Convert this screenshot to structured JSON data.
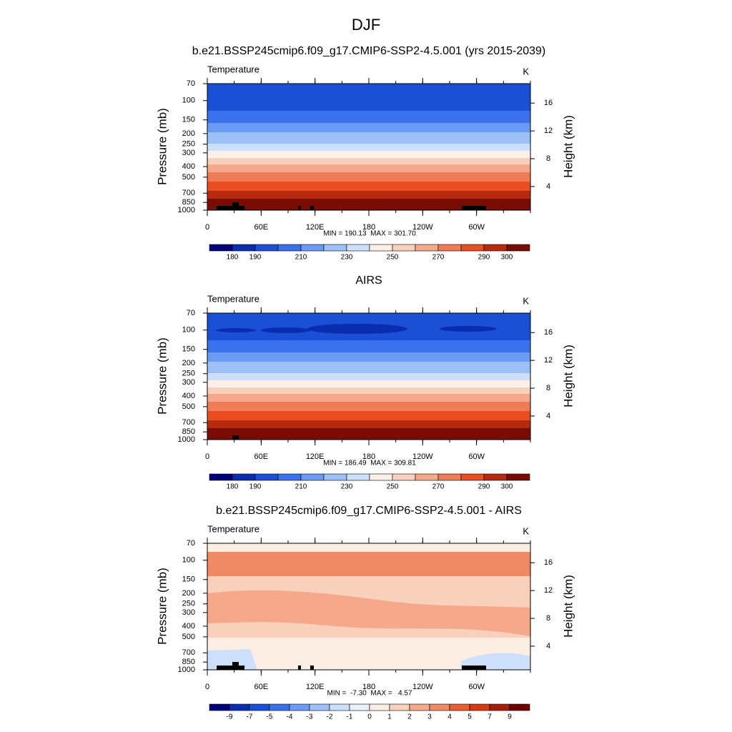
{
  "figure_title": "DJF",
  "chart_data": [
    {
      "type": "contour",
      "title": "b.e21.BSSP245cmip6.f09_g17.CMIP6-SSP2-4.5.001 (yrs 2015-2039)",
      "label_left": "Temperature",
      "units": "K",
      "ylabel": "Pressure (mb)",
      "y2label": "Height (km)",
      "stats": "MIN = 190.13  MAX = 301.70",
      "xlim": [
        0,
        360
      ],
      "xticks": [
        0,
        {
          "value": 60,
          "label": "60E"
        },
        {
          "value": 120,
          "label": "120E"
        },
        180,
        {
          "value": 240,
          "label": "120W"
        },
        {
          "value": 300,
          "label": "60W"
        }
      ],
      "ylim": [
        1000,
        70
      ],
      "ylog": true,
      "yticks": [
        70,
        100,
        150,
        200,
        250,
        300,
        400,
        500,
        700,
        850,
        1000
      ],
      "y2lim": [
        0.6,
        18.8
      ],
      "y2ticks": [
        4,
        8,
        12,
        16
      ],
      "colorbar": {
        "clim": [
          170,
          310
        ],
        "ticks": [
          180,
          190,
          210,
          230,
          250,
          270,
          290,
          300
        ],
        "colors": [
          "#00007a",
          "#0a2db0",
          "#1a4fd6",
          "#3a72ee",
          "#6a9af3",
          "#9cc0f7",
          "#cde0fb",
          "#fdf0e8",
          "#f9d0bb",
          "#f5a98a",
          "#f07c57",
          "#e84e22",
          "#b82a0e",
          "#7a0b03"
        ]
      }
    },
    {
      "type": "contour",
      "title": "AIRS",
      "label_left": "Temperature",
      "units": "K",
      "ylabel": "Pressure (mb)",
      "y2label": "Height (km)",
      "stats": "MIN = 186.49  MAX = 309.81",
      "xlim": [
        0,
        360
      ],
      "xticks": [
        0,
        {
          "value": 60,
          "label": "60E"
        },
        {
          "value": 120,
          "label": "120E"
        },
        180,
        {
          "value": 240,
          "label": "120W"
        },
        {
          "value": 300,
          "label": "60W"
        }
      ],
      "ylim": [
        1000,
        70
      ],
      "ylog": true,
      "yticks": [
        70,
        100,
        150,
        200,
        250,
        300,
        400,
        500,
        700,
        850,
        1000
      ],
      "y2lim": [
        0.6,
        18.8
      ],
      "y2ticks": [
        4,
        8,
        12,
        16
      ],
      "colorbar": {
        "clim": [
          170,
          310
        ],
        "ticks": [
          180,
          190,
          210,
          230,
          250,
          270,
          290,
          300
        ],
        "colors": [
          "#00007a",
          "#0a2db0",
          "#1a4fd6",
          "#3a72ee",
          "#6a9af3",
          "#9cc0f7",
          "#cde0fb",
          "#fdf0e8",
          "#f9d0bb",
          "#f5a98a",
          "#f07c57",
          "#e84e22",
          "#b82a0e",
          "#7a0b03"
        ]
      }
    },
    {
      "type": "contour",
      "title": "b.e21.BSSP245cmip6.f09_g17.CMIP6-SSP2-4.5.001 - AIRS",
      "label_left": "Temperature",
      "units": "K",
      "ylabel": "Pressure (mb)",
      "y2label": "Height (km)",
      "stats": "MIN =  -7.30  MAX =   4.57",
      "xlim": [
        0,
        360
      ],
      "xticks": [
        0,
        {
          "value": 60,
          "label": "60E"
        },
        {
          "value": 120,
          "label": "120E"
        },
        180,
        {
          "value": 240,
          "label": "120W"
        },
        {
          "value": 300,
          "label": "60W"
        }
      ],
      "ylim": [
        1000,
        70
      ],
      "ylog": true,
      "yticks": [
        70,
        100,
        150,
        200,
        250,
        300,
        400,
        500,
        700,
        850,
        1000
      ],
      "y2lim": [
        0.6,
        18.8
      ],
      "y2ticks": [
        4,
        8,
        12,
        16
      ],
      "colorbar": {
        "ticks": [
          -9,
          -7,
          -5,
          -4,
          -3,
          -2,
          -1,
          0,
          1,
          2,
          3,
          4,
          5,
          7,
          9
        ],
        "colors": [
          "#00007a",
          "#0a2db0",
          "#1a4fd6",
          "#3a72ee",
          "#6a9af3",
          "#9cc0f7",
          "#cde0fb",
          "#e8f1fc",
          "#fdeee4",
          "#f9d0bb",
          "#f5a98a",
          "#f08a65",
          "#e85e30",
          "#d23c12",
          "#a61d07",
          "#700000"
        ]
      }
    }
  ]
}
